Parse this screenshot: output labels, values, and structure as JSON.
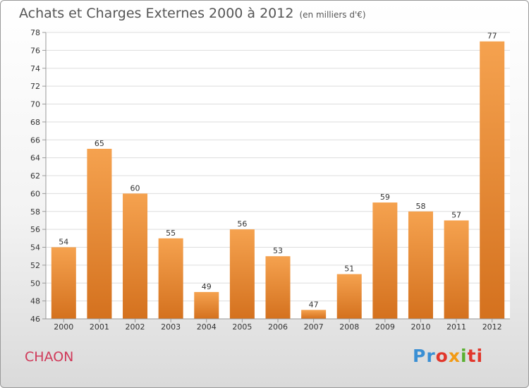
{
  "header": {
    "title": "Achats et Charges Externes 2000 à 2012",
    "unit": "(en milliers d'€)"
  },
  "footer": {
    "commune": "CHAON",
    "logo_text": "Proxiti"
  },
  "colors": {
    "bar_top": "#f5a24f",
    "bar_bottom": "#d4711e",
    "commune": "#d03a5a",
    "grid": "#dddddd"
  },
  "chart_data": {
    "type": "bar",
    "categories": [
      "2000",
      "2001",
      "2002",
      "2003",
      "2004",
      "2005",
      "2006",
      "2007",
      "2008",
      "2009",
      "2010",
      "2011",
      "2012"
    ],
    "values": [
      54,
      65,
      60,
      55,
      49,
      56,
      53,
      47,
      51,
      59,
      58,
      57,
      77
    ],
    "title": "Achats et Charges Externes 2000 à 2012",
    "subtitle": "(en milliers d'€)",
    "xlabel": "",
    "ylabel": "",
    "ylim": [
      46,
      78
    ],
    "yticks": [
      46,
      48,
      50,
      52,
      54,
      56,
      58,
      60,
      62,
      64,
      66,
      68,
      70,
      72,
      74,
      76,
      78
    ],
    "grid": true,
    "data_labels": true
  }
}
